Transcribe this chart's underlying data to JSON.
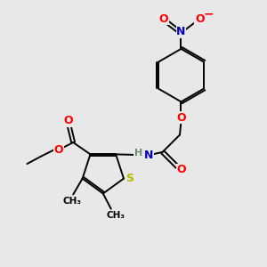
{
  "bg_color": "#e8e8e8",
  "bond_color": "#000000",
  "atom_colors": {
    "O": "#ff0000",
    "N": "#0000cd",
    "S": "#b8b800",
    "H": "#6b8e6b",
    "C": "#000000"
  },
  "figsize": [
    3.0,
    3.0
  ],
  "dpi": 100
}
